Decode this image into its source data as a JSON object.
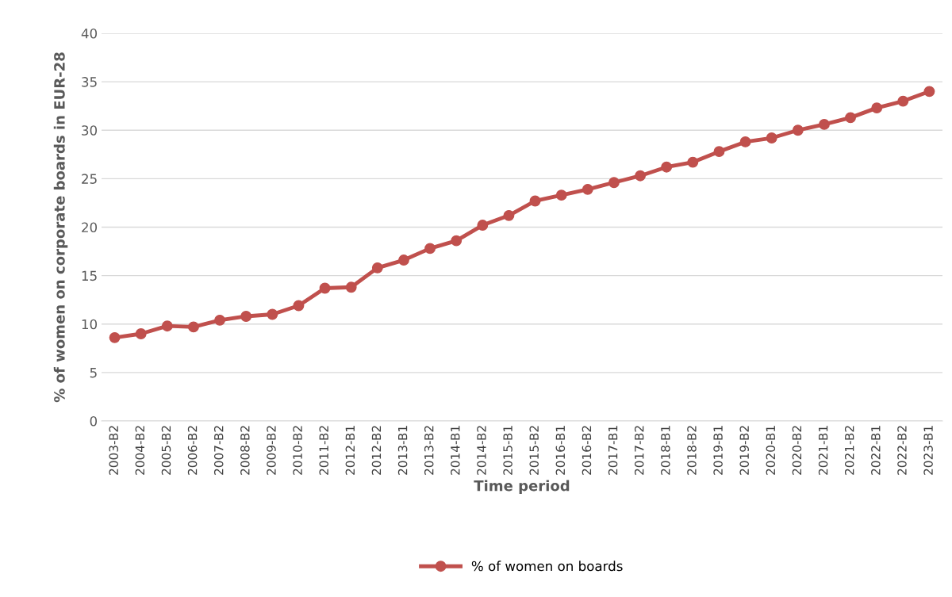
{
  "chart_data": {
    "type": "line",
    "xlabel": "Time period",
    "ylabel": "% of women on corporate boards in EUR-28",
    "categories": [
      "2003-B2",
      "2004-B2",
      "2005-B2",
      "2006-B2",
      "2007-B2",
      "2008-B2",
      "2009-B2",
      "2010-B2",
      "2011-B2",
      "2012-B1",
      "2012-B2",
      "2013-B1",
      "2013-B2",
      "2014-B1",
      "2014-B2",
      "2015-B1",
      "2015-B2",
      "2016-B1",
      "2016-B2",
      "2017-B1",
      "2017-B2",
      "2018-B1",
      "2018-B2",
      "2019-B1",
      "2019-B2",
      "2020-B1",
      "2020-B2",
      "2021-B1",
      "2021-B2",
      "2022-B1",
      "2022-B2",
      "2023-B1"
    ],
    "series": [
      {
        "name": "% of women on boards",
        "color": "#c0504d",
        "values": [
          8.6,
          9.0,
          9.8,
          9.7,
          10.4,
          10.8,
          11.0,
          11.9,
          13.7,
          13.8,
          15.8,
          16.6,
          17.8,
          18.6,
          20.2,
          21.2,
          22.7,
          23.3,
          23.9,
          24.6,
          25.3,
          26.2,
          26.7,
          27.8,
          28.8,
          29.2,
          30.0,
          30.6,
          31.3,
          32.3,
          33.0,
          34.0
        ]
      }
    ],
    "ylim": [
      0,
      40
    ],
    "yticks": [
      0,
      5,
      10,
      15,
      20,
      25,
      30,
      35,
      40
    ],
    "grid": "y",
    "legend": "bottom",
    "marker": "circle",
    "line_style": "solid"
  }
}
